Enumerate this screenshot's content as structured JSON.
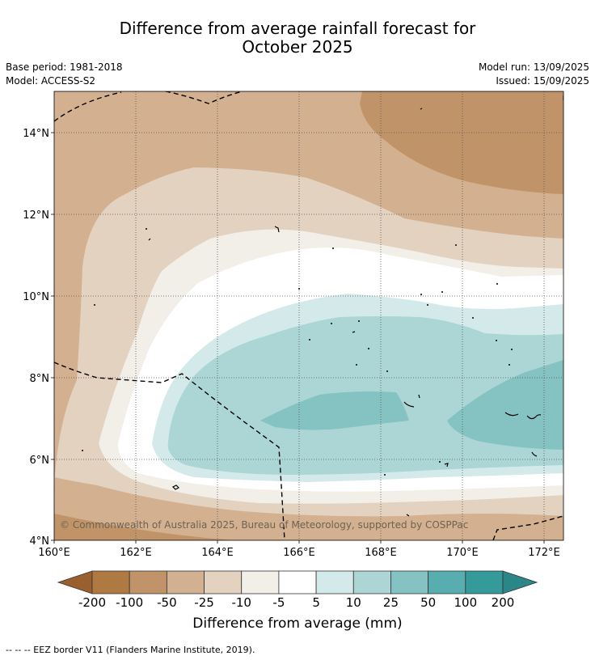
{
  "title": {
    "line1": "Difference from average rainfall forecast for",
    "line2": "October 2025"
  },
  "meta": {
    "base_period": "Base period: 1981-2018",
    "model": "Model: ACCESS-S2",
    "model_run": "Model run: 13/09/2025",
    "issued": "Issued: 15/09/2025"
  },
  "axes": {
    "x_ticks": [
      "160°E",
      "162°E",
      "164°E",
      "166°E",
      "168°E",
      "170°E",
      "172°E"
    ],
    "y_ticks": [
      "14°N",
      "12°N",
      "10°N",
      "8°N",
      "6°N",
      "4°N"
    ]
  },
  "copyright": "© Commonwealth of Australia 2025, Bureau of Meteorology, supported by COSPPac",
  "colorbar": {
    "title": "Difference from average (mm)",
    "labels": [
      "-200",
      "-100",
      "-50",
      "-25",
      "-10",
      "-5",
      "5",
      "10",
      "25",
      "50",
      "100",
      "200"
    ],
    "colors": [
      "#9a5f2e",
      "#ae7a42",
      "#c09468",
      "#d3b190",
      "#e4d2c1",
      "#f2eee8",
      "#ffffff",
      "#d4eaea",
      "#acd6d6",
      "#85c2c2",
      "#58aeae",
      "#359a9a",
      "#2b8787"
    ]
  },
  "footnote": "--  --  -- EEZ border V11 (Flanders Marine Institute, 2019)."
}
